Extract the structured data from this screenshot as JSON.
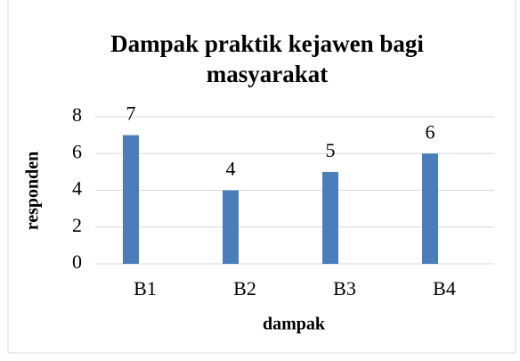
{
  "chart_data": {
    "type": "bar",
    "title": "Dampak praktik kejawen bagi masyarakat",
    "categories": [
      "B1",
      "B2",
      "B3",
      "B4"
    ],
    "values": [
      7,
      4,
      5,
      6
    ],
    "color": "#4a7ebb",
    "ylim": [
      0,
      8
    ],
    "yticks": [
      0,
      2,
      4,
      6,
      8
    ],
    "grid": true,
    "xlabel": "dampak",
    "ylabel": "responden"
  }
}
